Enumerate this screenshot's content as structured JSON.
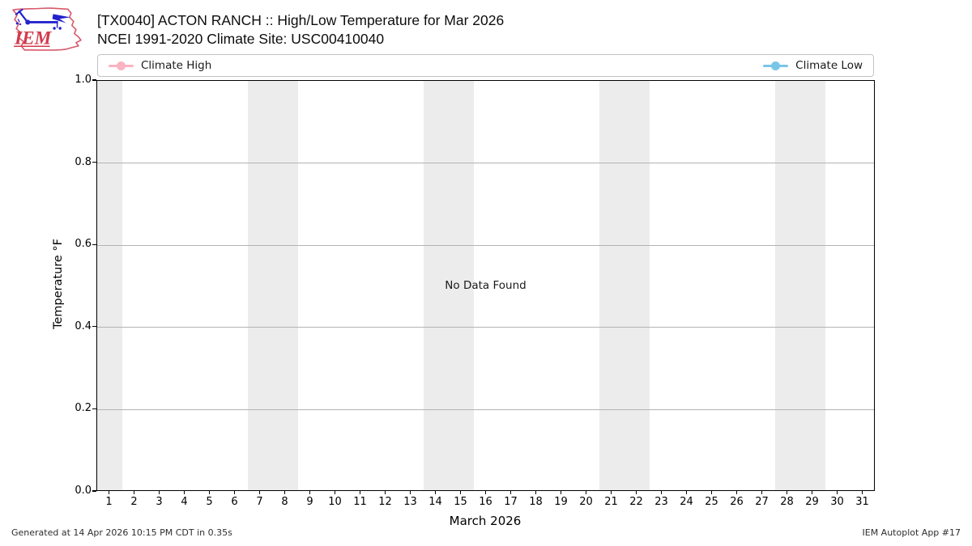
{
  "logo": {
    "text": "IEM",
    "outline_color": "#d8596b",
    "instrument_color": "#2222cc",
    "text_color": "#d23a4e"
  },
  "header": {
    "title_line1": "[TX0040] ACTON RANCH :: High/Low Temperature for Mar 2026",
    "title_line2": "NCEI 1991-2020 Climate Site: USC00410040"
  },
  "legend": {
    "items": [
      {
        "label": "Climate High",
        "color": "#f9b3c1"
      },
      {
        "label": "Climate Low",
        "color": "#79c6e6"
      }
    ]
  },
  "chart_data": {
    "type": "line",
    "title": "[TX0040] ACTON RANCH :: High/Low Temperature for Mar 2026",
    "subtitle": "NCEI 1991-2020 Climate Site: USC00410040",
    "xlabel": "March 2026",
    "ylabel": "Temperature °F",
    "xlim": [
      0.5,
      31.5
    ],
    "ylim": [
      0.0,
      1.0
    ],
    "x_ticks": [
      1,
      2,
      3,
      4,
      5,
      6,
      7,
      8,
      9,
      10,
      11,
      12,
      13,
      14,
      15,
      16,
      17,
      18,
      19,
      20,
      21,
      22,
      23,
      24,
      25,
      26,
      27,
      28,
      29,
      30,
      31
    ],
    "y_ticks": [
      0.0,
      0.2,
      0.4,
      0.6,
      0.8,
      1.0
    ],
    "y_tick_labels": [
      "0.0",
      "0.2",
      "0.4",
      "0.6",
      "0.8",
      "1.0"
    ],
    "grid": true,
    "legend_position": "top",
    "weekend_shading_days": [
      [
        0.5,
        1.5
      ],
      [
        6.5,
        8.5
      ],
      [
        13.5,
        15.5
      ],
      [
        20.5,
        22.5
      ],
      [
        27.5,
        29.5
      ]
    ],
    "weekend_shading_color": "#ececec",
    "series": [
      {
        "name": "Climate High",
        "color": "#f9b3c1",
        "values": []
      },
      {
        "name": "Climate Low",
        "color": "#79c6e6",
        "values": []
      }
    ],
    "no_data_message": "No Data Found"
  },
  "footer": {
    "left": "Generated at 14 Apr 2026 10:15 PM CDT in 0.35s",
    "right": "IEM Autoplot App #17"
  }
}
